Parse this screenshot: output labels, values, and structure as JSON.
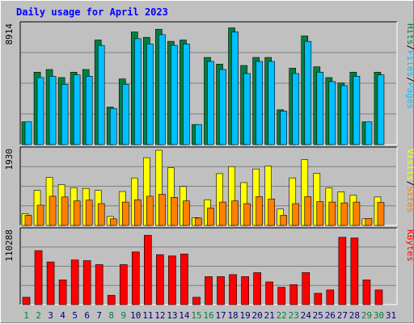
{
  "chart_data": {
    "type": "bar",
    "title": "Daily usage for April 2023",
    "colors": {
      "hits": "#008040",
      "files": "#00c0ff",
      "visits": "#ffff00",
      "sites": "#ff8000",
      "kbytes": "#ff0000",
      "title": "#0000ff",
      "weekend_label": "#008040",
      "weekday_label": "#000080"
    },
    "categories": [
      "1",
      "2",
      "3",
      "4",
      "5",
      "6",
      "7",
      "8",
      "9",
      "10",
      "11",
      "12",
      "13",
      "14",
      "15",
      "16",
      "17",
      "18",
      "19",
      "20",
      "21",
      "22",
      "23",
      "24",
      "25",
      "26",
      "27",
      "28",
      "29",
      "30",
      "31"
    ],
    "weekend_days": [
      "1",
      "2",
      "8",
      "9",
      "15",
      "16",
      "22",
      "23",
      "29",
      "30"
    ],
    "panels": [
      {
        "name": "pages_files_hits",
        "max_label": "8914",
        "ymax": 8914,
        "side_labels": [
          "Pages",
          "/",
          "Files",
          "/",
          "Hits"
        ],
        "series": [
          {
            "name": "Hits",
            "values": [
              1700,
              5400,
              5600,
              5000,
              5400,
              5600,
              7800,
              2800,
              4900,
              8400,
              8000,
              8600,
              7700,
              7800,
              1500,
              6500,
              6000,
              8700,
              5900,
              6500,
              6500,
              2600,
              5700,
              8100,
              5800,
              5000,
              4600,
              5400,
              1700,
              5400,
              0
            ]
          },
          {
            "name": "Files",
            "values": [
              1700,
              5000,
              5100,
              4500,
              5200,
              5100,
              7400,
              2700,
              4500,
              7900,
              7500,
              8200,
              7400,
              7500,
              1500,
              6200,
              5600,
              8400,
              5300,
              6200,
              6200,
              2500,
              5300,
              7700,
              5400,
              4700,
              4400,
              5100,
              1700,
              5200,
              0
            ]
          }
        ]
      },
      {
        "name": "sites_visits",
        "max_label": "1930",
        "ymax": 1930,
        "side_labels": [
          "Sites",
          "/",
          "Visits"
        ],
        "series": [
          {
            "name": "Visits",
            "values": [
              300,
              900,
              1230,
              1050,
              970,
              950,
              900,
              230,
              870,
              1220,
              1740,
              1930,
              1480,
              1000,
              200,
              660,
              1330,
              1510,
              1100,
              1450,
              1520,
              420,
              1220,
              1690,
              1340,
              960,
              860,
              780,
              170,
              730,
              0
            ]
          },
          {
            "name": "Sites",
            "values": [
              260,
              520,
              750,
              730,
              630,
              650,
              560,
              170,
              600,
              660,
              750,
              800,
              720,
              630,
              190,
              450,
              600,
              630,
              560,
              740,
              680,
              260,
              560,
              740,
              610,
              600,
              580,
              600,
              180,
              590,
              0
            ]
          }
        ]
      },
      {
        "name": "kbytes",
        "max_label": "110288",
        "ymax": 110288,
        "side_labels": [
          "KBytes"
        ],
        "series": [
          {
            "name": "KBytes",
            "values": [
              11000,
              81000,
              64000,
              37000,
              67000,
              66000,
              60000,
              14000,
              60000,
              79000,
              104000,
              75000,
              73000,
              76000,
              11000,
              42000,
              42000,
              45000,
              42000,
              48000,
              34000,
              26000,
              30000,
              48000,
              17000,
              22000,
              101000,
              100000,
              37000,
              22000,
              0
            ]
          }
        ]
      }
    ]
  }
}
